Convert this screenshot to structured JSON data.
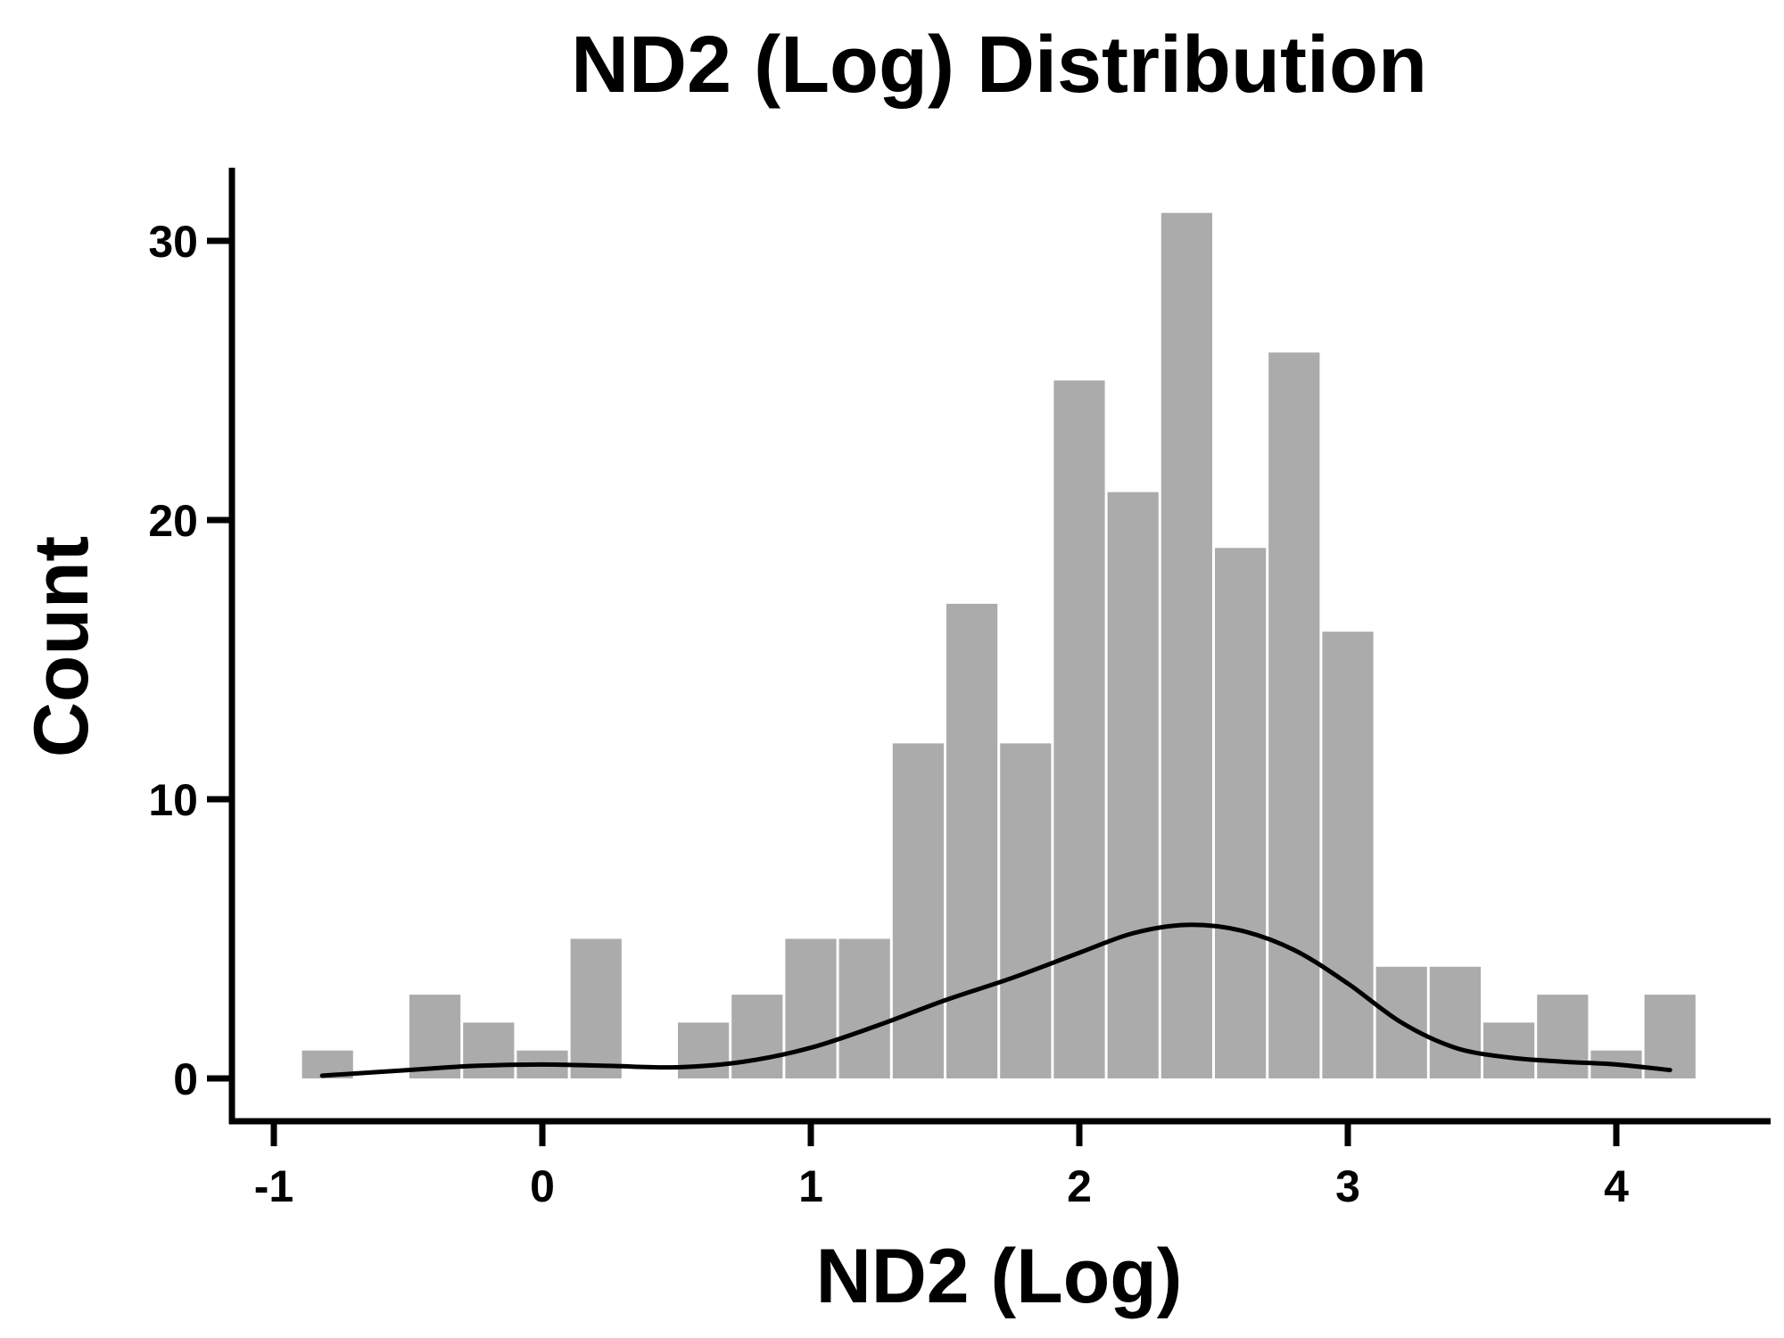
{
  "chart_data": {
    "type": "bar",
    "title": "ND2 (Log) Distribution",
    "xlabel": "ND2 (Log)",
    "ylabel": "Count",
    "xlim": [
      -1.1,
      4.55
    ],
    "ylim": [
      -1.5,
      33
    ],
    "x_ticks": [
      -1,
      0,
      1,
      2,
      3,
      4
    ],
    "x_tick_labels": [
      "-1",
      "0",
      "1",
      "2",
      "3",
      "4"
    ],
    "y_ticks": [
      0,
      10,
      20,
      30
    ],
    "y_tick_labels": [
      "0",
      "10",
      "20",
      "30"
    ],
    "bin_width": 0.2,
    "bins": [
      {
        "start": -0.9,
        "count": 1
      },
      {
        "start": -0.5,
        "count": 3
      },
      {
        "start": -0.3,
        "count": 2
      },
      {
        "start": -0.1,
        "count": 1
      },
      {
        "start": 0.1,
        "count": 5
      },
      {
        "start": 0.5,
        "count": 2
      },
      {
        "start": 0.7,
        "count": 3
      },
      {
        "start": 0.9,
        "count": 5
      },
      {
        "start": 1.1,
        "count": 5
      },
      {
        "start": 1.3,
        "count": 12
      },
      {
        "start": 1.5,
        "count": 17
      },
      {
        "start": 1.7,
        "count": 12
      },
      {
        "start": 1.9,
        "count": 25
      },
      {
        "start": 2.1,
        "count": 21
      },
      {
        "start": 2.3,
        "count": 31
      },
      {
        "start": 2.5,
        "count": 19
      },
      {
        "start": 2.7,
        "count": 26
      },
      {
        "start": 2.9,
        "count": 16
      },
      {
        "start": 3.1,
        "count": 4
      },
      {
        "start": 3.3,
        "count": 4
      },
      {
        "start": 3.5,
        "count": 2
      },
      {
        "start": 3.7,
        "count": 3
      },
      {
        "start": 3.9,
        "count": 1
      },
      {
        "start": 4.1,
        "count": 3
      }
    ],
    "density_curve": [
      {
        "x": -0.82,
        "y": 0.1
      },
      {
        "x": -0.5,
        "y": 0.3
      },
      {
        "x": -0.25,
        "y": 0.45
      },
      {
        "x": 0.0,
        "y": 0.5
      },
      {
        "x": 0.25,
        "y": 0.45
      },
      {
        "x": 0.5,
        "y": 0.4
      },
      {
        "x": 0.75,
        "y": 0.6
      },
      {
        "x": 1.0,
        "y": 1.1
      },
      {
        "x": 1.25,
        "y": 1.9
      },
      {
        "x": 1.5,
        "y": 2.8
      },
      {
        "x": 1.75,
        "y": 3.6
      },
      {
        "x": 2.0,
        "y": 4.5
      },
      {
        "x": 2.2,
        "y": 5.2
      },
      {
        "x": 2.4,
        "y": 5.5
      },
      {
        "x": 2.6,
        "y": 5.3
      },
      {
        "x": 2.8,
        "y": 4.6
      },
      {
        "x": 3.0,
        "y": 3.4
      },
      {
        "x": 3.2,
        "y": 2.0
      },
      {
        "x": 3.4,
        "y": 1.1
      },
      {
        "x": 3.6,
        "y": 0.75
      },
      {
        "x": 3.8,
        "y": 0.6
      },
      {
        "x": 4.0,
        "y": 0.5
      },
      {
        "x": 4.2,
        "y": 0.3
      }
    ],
    "bar_color": "#ababab",
    "curve_color": "#000000",
    "grid": false,
    "legend": "none"
  }
}
